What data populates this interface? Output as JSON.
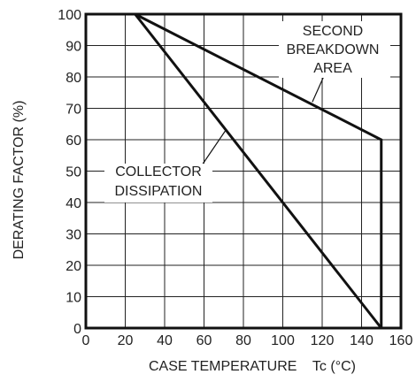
{
  "chart_data": {
    "type": "line",
    "xlabel": "CASE TEMPERATURE    Tc (°C)",
    "ylabel": "DERATING FACTOR (%)",
    "xlim": [
      0,
      160
    ],
    "ylim": [
      0,
      100
    ],
    "x_ticks": [
      0,
      20,
      40,
      60,
      80,
      100,
      120,
      140,
      160
    ],
    "y_ticks": [
      0,
      10,
      20,
      30,
      40,
      50,
      60,
      70,
      80,
      90,
      100
    ],
    "grid": true,
    "series": [
      {
        "name": "COLLECTOR DISSIPATION",
        "x": [
          25,
          150
        ],
        "y": [
          100,
          0
        ]
      },
      {
        "name": "SECOND BREAKDOWN AREA",
        "x": [
          25,
          150,
          150
        ],
        "y": [
          100,
          60,
          0
        ]
      }
    ],
    "annotations": [
      {
        "lines": [
          "COLLECTOR",
          "DISSIPATION"
        ],
        "series": 0,
        "point": [
          71,
          63
        ]
      },
      {
        "lines": [
          "SECOND",
          "BREAKDOWN",
          "AREA"
        ],
        "series": 1,
        "point": [
          115,
          72
        ]
      }
    ]
  }
}
